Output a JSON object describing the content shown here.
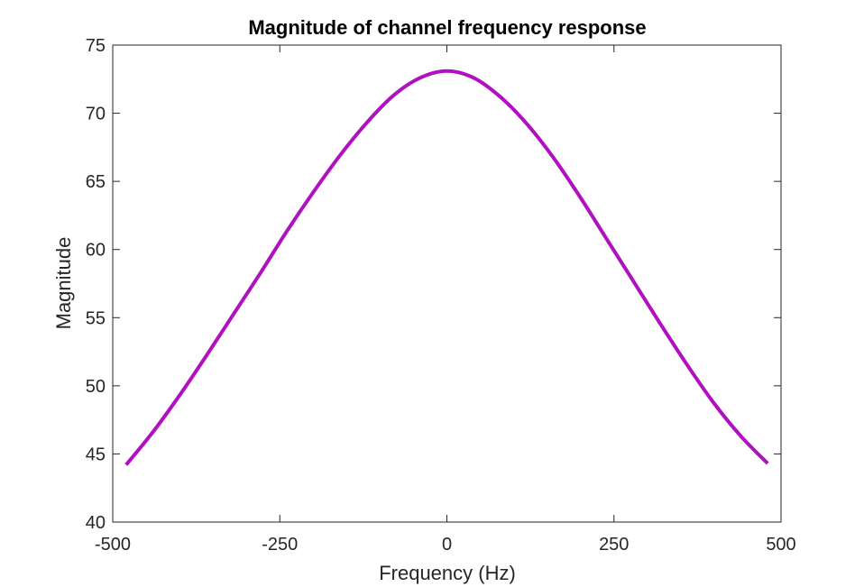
{
  "chart_data": {
    "type": "line",
    "title": "Magnitude of channel frequency response",
    "xlabel": "Frequency (Hz)",
    "ylabel": "Magnitude",
    "xlim": [
      -500,
      500
    ],
    "ylim": [
      40,
      75
    ],
    "xticks": [
      -500,
      -250,
      0,
      250,
      500
    ],
    "yticks": [
      40,
      45,
      50,
      55,
      60,
      65,
      70,
      75
    ],
    "xtick_labels": [
      "-500",
      "-250",
      "0",
      "250",
      "500"
    ],
    "ytick_labels": [
      "40",
      "45",
      "50",
      "55",
      "60",
      "65",
      "70",
      "75"
    ],
    "grid": false,
    "series": [
      {
        "color": "#b010c0",
        "x": [
          -480,
          -440,
          -400,
          -360,
          -320,
          -280,
          -240,
          -200,
          -160,
          -120,
          -80,
          -40,
          0,
          40,
          80,
          120,
          160,
          200,
          240,
          280,
          320,
          360,
          400,
          440,
          480
        ],
        "y": [
          44.2,
          46.6,
          49.3,
          52.2,
          55.2,
          58.2,
          61.3,
          64.2,
          66.9,
          69.3,
          71.3,
          72.6,
          73.1,
          72.6,
          71.2,
          69.2,
          66.7,
          63.8,
          60.7,
          57.6,
          54.5,
          51.5,
          48.7,
          46.3,
          44.3
        ]
      }
    ]
  }
}
